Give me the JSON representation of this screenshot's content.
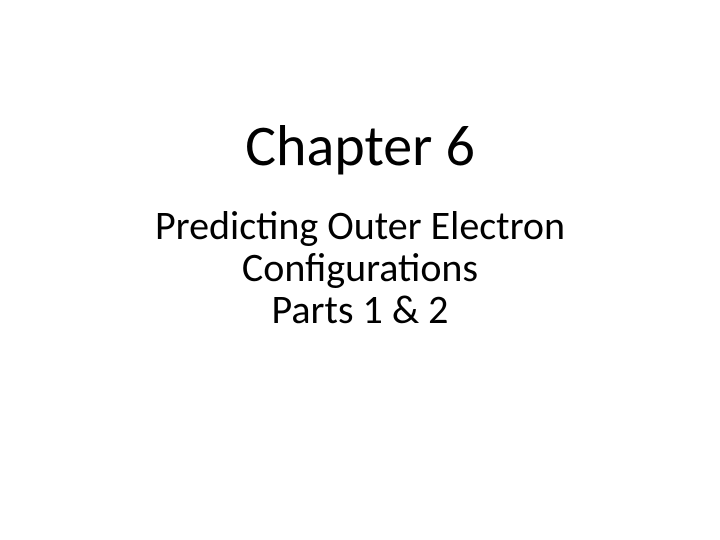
{
  "slide": {
    "title": "Chapter 6",
    "subtitle_line1": "Predicting Outer Electron",
    "subtitle_line2": "Configurations",
    "subtitle_line3": "Parts 1 & 2",
    "background_color": "#ffffff",
    "text_color": "#000000",
    "title_fontsize": 58,
    "subtitle_fontsize": 40
  }
}
